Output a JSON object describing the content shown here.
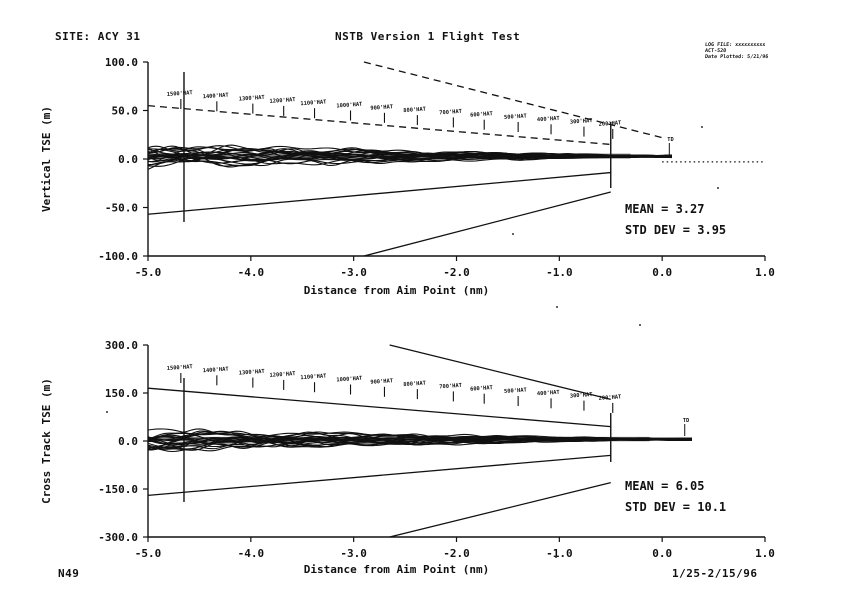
{
  "header": {
    "site": "SITE:  ACY 31",
    "title": "NSTB Version 1 Flight Test",
    "stamp_lines": [
      "LOG FILE: xxxxxxxxxx",
      "ACT-520",
      "Date Plotted: 5/21/96"
    ]
  },
  "footer": {
    "left": "N49",
    "right": "1/25-2/15/96"
  },
  "hat_labels": [
    "1500'HAT",
    "1400'HAT",
    "1300'HAT",
    "1200'HAT",
    "1100'HAT",
    "1000'HAT",
    "900'HAT",
    "800'HAT",
    "700'HAT",
    "600'HAT",
    "500'HAT",
    "400'HAT",
    "300'HAT",
    "200'HAT"
  ],
  "td_label": "TD",
  "chart_data": [
    {
      "type": "line",
      "title": "NSTB Version 1 Flight Test",
      "xlabel": "Distance from Aim Point (nm)",
      "ylabel": "Vertical TSE (m)",
      "xlim": [
        -5.0,
        1.0
      ],
      "ylim": [
        -100.0,
        100.0
      ],
      "xticks": [
        -5.0,
        -4.0,
        -3.0,
        -2.0,
        -1.0,
        0.0,
        1.0
      ],
      "xtick_labels": [
        "-5.0",
        "-4.0",
        "-3.0",
        "-2.0",
        "-1.0",
        "0.0",
        "1.0"
      ],
      "yticks": [
        100.0,
        50.0,
        0.0,
        -50.0,
        -100.0
      ],
      "ytick_labels": [
        "100.0",
        "50.0",
        "0.0",
        "-50.0",
        "-100.0"
      ],
      "stats": {
        "mean_label": "MEAN = 3.27",
        "std_label": "STD DEV = 3.95",
        "mean": 3.27,
        "std_dev": 3.95
      },
      "series": [
        {
          "name": "upper limit (dashed)",
          "style": "dashed",
          "x": [
            -5.0,
            -0.5
          ],
          "y": [
            55,
            15
          ]
        },
        {
          "name": "outer upper limit (dashed)",
          "style": "dashed",
          "x": [
            -2.9,
            0.0
          ],
          "y": [
            100,
            22
          ]
        },
        {
          "name": "lower limit",
          "style": "solid",
          "x": [
            -5.0,
            -0.5
          ],
          "y": [
            -57,
            -14
          ]
        },
        {
          "name": "outer lower limit",
          "style": "solid",
          "x": [
            -2.9,
            -0.5
          ],
          "y": [
            -100,
            -34
          ]
        },
        {
          "name": "zero reference (dotted)",
          "style": "dotted",
          "x": [
            0.0,
            1.0
          ],
          "y": [
            -3,
            -3
          ]
        }
      ],
      "hat_marks_x": [
        -4.7,
        -4.35,
        -4.0,
        -3.7,
        -3.4,
        -3.05,
        -2.72,
        -2.4,
        -2.05,
        -1.75,
        -1.42,
        -1.1,
        -0.78,
        -0.5
      ],
      "vertical_markers_x": [
        -4.65,
        -0.5
      ],
      "td_x": 0.05,
      "tracks": {
        "count": 22,
        "x_start": -5.0,
        "x_end": 0.1,
        "amplitude_max": 14,
        "center": 3
      }
    },
    {
      "type": "line",
      "title": "",
      "xlabel": "Distance from Aim Point (nm)",
      "ylabel": "Cross Track TSE (m)",
      "xlim": [
        -5.0,
        1.0
      ],
      "ylim": [
        -300.0,
        300.0
      ],
      "xticks": [
        -5.0,
        -4.0,
        -3.0,
        -2.0,
        -1.0,
        0.0,
        1.0
      ],
      "xtick_labels": [
        "-5.0",
        "-4.0",
        "-3.0",
        "-2.0",
        "-1.0",
        "0.0",
        "1.0"
      ],
      "yticks": [
        300.0,
        150.0,
        0.0,
        -150.0,
        -300.0
      ],
      "ytick_labels": [
        "300.0",
        "150.0",
        "0.0",
        "-150.0",
        "-300.0"
      ],
      "stats": {
        "mean_label": "MEAN = 6.05",
        "std_label": "STD DEV = 10.1",
        "mean": 6.05,
        "std_dev": 10.1
      },
      "series": [
        {
          "name": "upper limit",
          "style": "solid",
          "x": [
            -5.0,
            -0.5
          ],
          "y": [
            165,
            45
          ]
        },
        {
          "name": "outer upper limit",
          "style": "solid",
          "x": [
            -2.65,
            -0.5
          ],
          "y": [
            300,
            130
          ]
        },
        {
          "name": "lower limit",
          "style": "solid",
          "x": [
            -5.0,
            -0.5
          ],
          "y": [
            -170,
            -45
          ]
        },
        {
          "name": "outer lower limit",
          "style": "solid",
          "x": [
            -2.65,
            -0.5
          ],
          "y": [
            -300,
            -130
          ]
        }
      ],
      "hat_marks_x": [
        -4.7,
        -4.35,
        -4.0,
        -3.7,
        -3.4,
        -3.05,
        -2.72,
        -2.4,
        -2.05,
        -1.75,
        -1.42,
        -1.1,
        -0.78,
        -0.5
      ],
      "vertical_markers_x": [
        -4.65,
        -0.5
      ],
      "td_x": 0.2,
      "tracks": {
        "count": 22,
        "x_start": -5.0,
        "x_end": 0.3,
        "amplitude_max": 38,
        "center": 6
      }
    }
  ]
}
